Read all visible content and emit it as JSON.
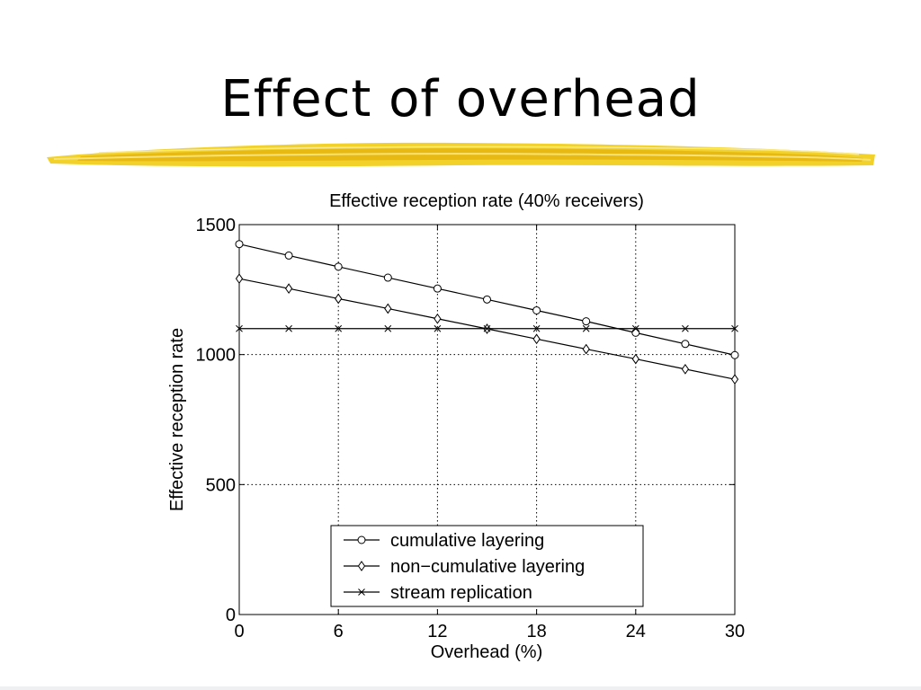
{
  "slide": {
    "title": "Effect of overhead"
  },
  "chart_data": {
    "type": "line",
    "title": "Effective reception rate (40% receivers)",
    "xlabel": "Overhead (%)",
    "ylabel": "Effective reception rate",
    "xlim": [
      0,
      30
    ],
    "ylim": [
      0,
      1500
    ],
    "xticks": [
      0,
      6,
      12,
      18,
      24,
      30
    ],
    "yticks": [
      0,
      500,
      1000,
      1500
    ],
    "grid": true,
    "legend_position": "bottom-center",
    "x": [
      0,
      3,
      6,
      9,
      12,
      15,
      18,
      21,
      24,
      27,
      30
    ],
    "series": [
      {
        "name": "cumulative layering",
        "marker": "circle",
        "values": [
          1425,
          1381,
          1338,
          1296,
          1254,
          1212,
          1170,
          1128,
          1084,
          1041,
          998
        ]
      },
      {
        "name": "non−cumulative layering",
        "marker": "diamond",
        "values": [
          1292,
          1254,
          1215,
          1177,
          1138,
          1099,
          1060,
          1021,
          983,
          944,
          905
        ]
      },
      {
        "name": "stream replication",
        "marker": "x",
        "values": [
          1100,
          1100,
          1100,
          1100,
          1100,
          1100,
          1100,
          1100,
          1100,
          1100,
          1100
        ]
      }
    ]
  }
}
